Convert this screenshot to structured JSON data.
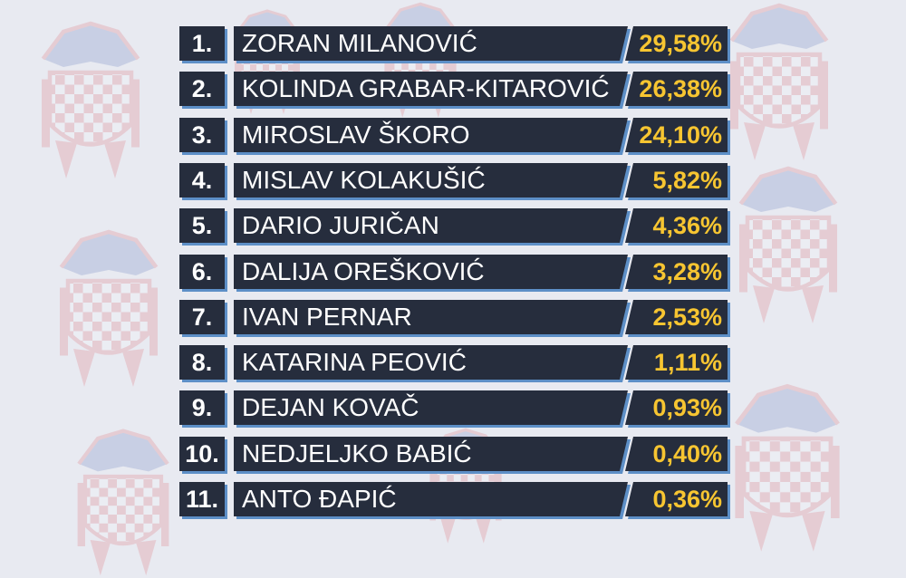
{
  "chart_data": {
    "type": "table",
    "columns": [
      "rank",
      "candidate",
      "percent"
    ],
    "rows": [
      {
        "rank": "1.",
        "candidate": "ZORAN MILANOVIĆ",
        "percent": "29,58%",
        "value": 29.58
      },
      {
        "rank": "2.",
        "candidate": "KOLINDA GRABAR-KITAROVIĆ",
        "percent": "26,38%",
        "value": 26.38
      },
      {
        "rank": "3.",
        "candidate": "MIROSLAV ŠKORO",
        "percent": "24,10%",
        "value": 24.1
      },
      {
        "rank": "4.",
        "candidate": "MISLAV KOLAKUŠIĆ",
        "percent": "5,82%",
        "value": 5.82
      },
      {
        "rank": "5.",
        "candidate": "DARIO JURIČAN",
        "percent": "4,36%",
        "value": 4.36
      },
      {
        "rank": "6.",
        "candidate": "DALIJA OREŠKOVIĆ",
        "percent": "3,28%",
        "value": 3.28
      },
      {
        "rank": "7.",
        "candidate": "IVAN PERNAR",
        "percent": "2,53%",
        "value": 2.53
      },
      {
        "rank": "8.",
        "candidate": "KATARINA PEOVIĆ",
        "percent": "1,11%",
        "value": 1.11
      },
      {
        "rank": "9.",
        "candidate": "DEJAN KOVAČ",
        "percent": "0,93%",
        "value": 0.93
      },
      {
        "rank": "10.",
        "candidate": "NEDJELJKO BABIĆ",
        "percent": "0,40%",
        "value": 0.4
      },
      {
        "rank": "11.",
        "candidate": "ANTO ĐAPIĆ",
        "percent": "0,36%",
        "value": 0.36
      }
    ]
  },
  "colors": {
    "background": "#e8eaf1",
    "row_fill": "#262d3d",
    "row_shadow": "#5d8fc7",
    "name_text": "#ffffff",
    "percent_text": "#f7c531",
    "emblem_red": "#d9343f",
    "emblem_blue": "#2b4aa3"
  },
  "background": {
    "pattern_icon": "croatian-coat-of-arms-icon"
  }
}
